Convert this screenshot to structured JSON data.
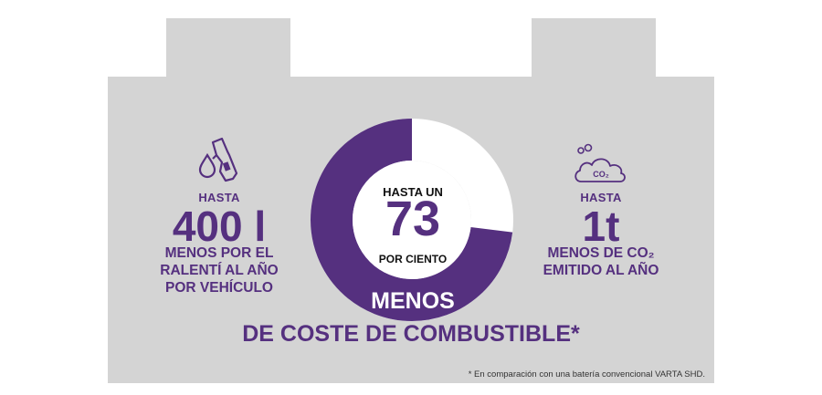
{
  "colors": {
    "background": "#ffffff",
    "battery_gray": "#d4d4d4",
    "accent_purple": "#55307f",
    "donut_light": "#ffffff"
  },
  "icons": {
    "left": "fuel-nozzle-icon",
    "right": "co2-cloud-icon"
  },
  "left_stat": {
    "prefix": "HASTA",
    "value": "400 l",
    "desc_line1": "MENOS POR EL",
    "desc_line2": "RALENTÍ AL AÑO",
    "desc_line3": "POR VEHÍCULO"
  },
  "center_stat": {
    "prefix": "HASTA UN",
    "value": "73",
    "unit": "POR CIENTO",
    "percent": 73,
    "heading_line1": "MENOS",
    "heading_line2": "DE COSTE DE COMBUSTIBLE*"
  },
  "right_stat": {
    "prefix": "HASTA",
    "value": "1t",
    "desc_line1": "MENOS DE CO₂",
    "desc_line2": "EMITIDO AL AÑO",
    "cloud_label": "CO₂"
  },
  "footnote": "* En comparación con una batería convencional VARTA SHD."
}
